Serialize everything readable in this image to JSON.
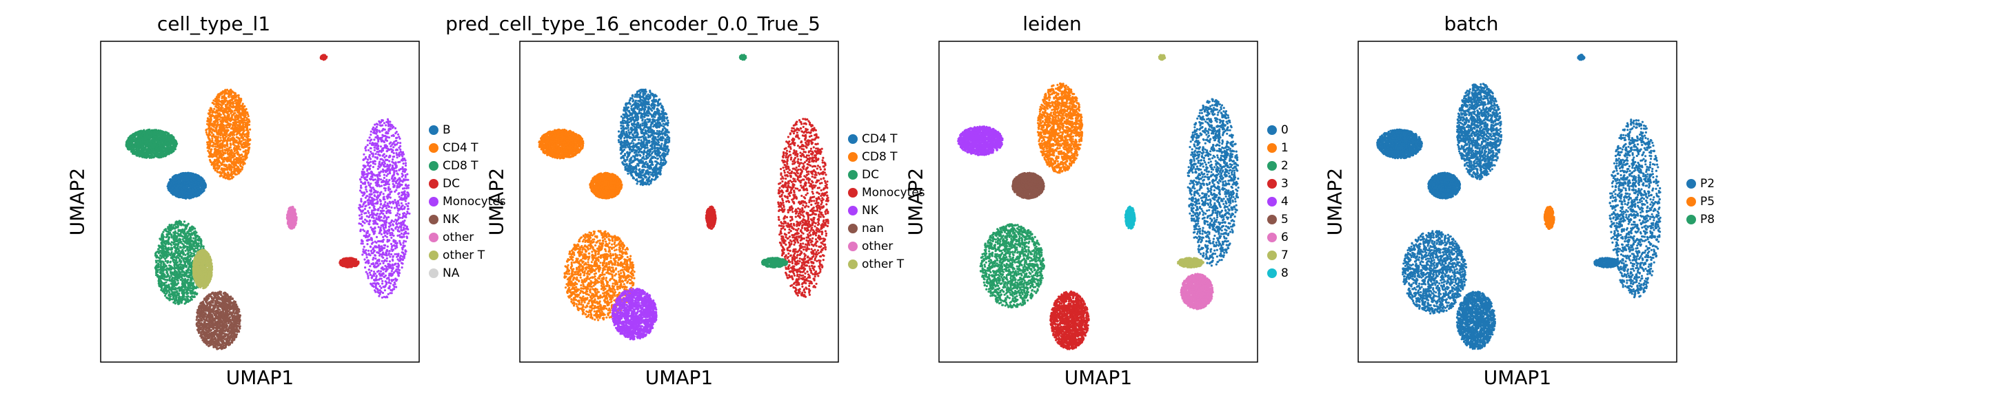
{
  "chart_data": [
    {
      "type": "scatter",
      "title": "cell_type_l1",
      "xlabel": "UMAP1",
      "ylabel": "UMAP2",
      "grid": false,
      "legend_position": "right",
      "legend": [
        {
          "label": "B",
          "color": "#1f77b4"
        },
        {
          "label": "CD4 T",
          "color": "#ff7f0e"
        },
        {
          "label": "CD8 T",
          "color": "#279e68"
        },
        {
          "label": "DC",
          "color": "#d62728"
        },
        {
          "label": "Monocytes",
          "color": "#aa40fc"
        },
        {
          "label": "NK",
          "color": "#8c564b"
        },
        {
          "label": "other",
          "color": "#e377c2"
        },
        {
          "label": "other T",
          "color": "#b5bd61"
        },
        {
          "label": "NA",
          "color": "#d3d3d3"
        }
      ],
      "clusters": [
        {
          "label": "B",
          "cx": 0.27,
          "cy": 0.55,
          "rx": 0.06,
          "ry": 0.04
        },
        {
          "label": "CD8 T",
          "cx": 0.16,
          "cy": 0.68,
          "rx": 0.08,
          "ry": 0.045
        },
        {
          "label": "CD4 T",
          "cx": 0.4,
          "cy": 0.71,
          "rx": 0.07,
          "ry": 0.14
        },
        {
          "label": "other",
          "cx": 0.6,
          "cy": 0.45,
          "rx": 0.015,
          "ry": 0.035
        },
        {
          "label": "Monocytes",
          "cx": 0.89,
          "cy": 0.48,
          "rx": 0.08,
          "ry": 0.28
        },
        {
          "label": "DC",
          "cx": 0.78,
          "cy": 0.31,
          "rx": 0.03,
          "ry": 0.015
        },
        {
          "label": "CD8 T",
          "cx": 0.25,
          "cy": 0.31,
          "rx": 0.08,
          "ry": 0.13
        },
        {
          "label": "other T",
          "cx": 0.32,
          "cy": 0.29,
          "rx": 0.03,
          "ry": 0.06
        },
        {
          "label": "NK",
          "cx": 0.37,
          "cy": 0.13,
          "rx": 0.07,
          "ry": 0.09
        },
        {
          "label": "DC",
          "cx": 0.7,
          "cy": 0.95,
          "rx": 0.01,
          "ry": 0.008
        }
      ]
    },
    {
      "type": "scatter",
      "title": "pred_cell_type_16_encoder_0.0_True_5",
      "xlabel": "UMAP1",
      "ylabel": "UMAP2",
      "grid": false,
      "legend_position": "right",
      "legend": [
        {
          "label": "CD4 T",
          "color": "#1f77b4"
        },
        {
          "label": "CD8 T",
          "color": "#ff7f0e"
        },
        {
          "label": "DC",
          "color": "#279e68"
        },
        {
          "label": "Monocytes",
          "color": "#d62728"
        },
        {
          "label": "NK",
          "color": "#aa40fc"
        },
        {
          "label": "nan",
          "color": "#8c564b"
        },
        {
          "label": "other",
          "color": "#e377c2"
        },
        {
          "label": "other T",
          "color": "#b5bd61"
        }
      ],
      "clusters": [
        {
          "label": "CD8 T",
          "cx": 0.13,
          "cy": 0.68,
          "rx": 0.07,
          "ry": 0.045
        },
        {
          "label": "CD4 T",
          "cx": 0.39,
          "cy": 0.7,
          "rx": 0.08,
          "ry": 0.15
        },
        {
          "label": "CD8 T",
          "cx": 0.27,
          "cy": 0.55,
          "rx": 0.05,
          "ry": 0.04
        },
        {
          "label": "Monocytes",
          "cx": 0.89,
          "cy": 0.48,
          "rx": 0.08,
          "ry": 0.28
        },
        {
          "label": "DC",
          "cx": 0.8,
          "cy": 0.31,
          "rx": 0.04,
          "ry": 0.015
        },
        {
          "label": "Monocytes",
          "cx": 0.6,
          "cy": 0.45,
          "rx": 0.015,
          "ry": 0.035
        },
        {
          "label": "CD8 T",
          "cx": 0.25,
          "cy": 0.27,
          "rx": 0.11,
          "ry": 0.14
        },
        {
          "label": "NK",
          "cx": 0.36,
          "cy": 0.15,
          "rx": 0.07,
          "ry": 0.08
        },
        {
          "label": "DC",
          "cx": 0.7,
          "cy": 0.95,
          "rx": 0.01,
          "ry": 0.008
        }
      ]
    },
    {
      "type": "scatter",
      "title": "leiden",
      "xlabel": "UMAP1",
      "ylabel": "UMAP2",
      "grid": false,
      "legend_position": "right",
      "legend": [
        {
          "label": "0",
          "color": "#1f77b4"
        },
        {
          "label": "1",
          "color": "#ff7f0e"
        },
        {
          "label": "2",
          "color": "#279e68"
        },
        {
          "label": "3",
          "color": "#d62728"
        },
        {
          "label": "4",
          "color": "#aa40fc"
        },
        {
          "label": "5",
          "color": "#8c564b"
        },
        {
          "label": "6",
          "color": "#e377c2"
        },
        {
          "label": "7",
          "color": "#b5bd61"
        },
        {
          "label": "8",
          "color": "#17becf"
        }
      ],
      "clusters": [
        {
          "label": "4",
          "cx": 0.13,
          "cy": 0.69,
          "rx": 0.07,
          "ry": 0.045
        },
        {
          "label": "1",
          "cx": 0.38,
          "cy": 0.73,
          "rx": 0.07,
          "ry": 0.14
        },
        {
          "label": "5",
          "cx": 0.28,
          "cy": 0.55,
          "rx": 0.05,
          "ry": 0.04
        },
        {
          "label": "8",
          "cx": 0.6,
          "cy": 0.45,
          "rx": 0.015,
          "ry": 0.035
        },
        {
          "label": "0",
          "cx": 0.86,
          "cy": 0.56,
          "rx": 0.08,
          "ry": 0.26
        },
        {
          "label": "7",
          "cx": 0.79,
          "cy": 0.31,
          "rx": 0.04,
          "ry": 0.015
        },
        {
          "label": "6",
          "cx": 0.81,
          "cy": 0.22,
          "rx": 0.05,
          "ry": 0.055
        },
        {
          "label": "2",
          "cx": 0.23,
          "cy": 0.3,
          "rx": 0.1,
          "ry": 0.13
        },
        {
          "label": "3",
          "cx": 0.41,
          "cy": 0.13,
          "rx": 0.06,
          "ry": 0.09
        },
        {
          "label": "7",
          "cx": 0.7,
          "cy": 0.95,
          "rx": 0.01,
          "ry": 0.008
        }
      ]
    },
    {
      "type": "scatter",
      "title": "batch",
      "xlabel": "UMAP1",
      "ylabel": "UMAP2",
      "grid": false,
      "legend_position": "right",
      "legend": [
        {
          "label": "P2",
          "color": "#1f77b4"
        },
        {
          "label": "P5",
          "color": "#ff7f0e"
        },
        {
          "label": "P8",
          "color": "#279e68"
        }
      ],
      "clusters": [
        {
          "label": "P2",
          "cx": 0.13,
          "cy": 0.68,
          "rx": 0.07,
          "ry": 0.045
        },
        {
          "label": "P2",
          "cx": 0.38,
          "cy": 0.72,
          "rx": 0.07,
          "ry": 0.15
        },
        {
          "label": "P2",
          "cx": 0.27,
          "cy": 0.55,
          "rx": 0.05,
          "ry": 0.04
        },
        {
          "label": "P5",
          "cx": 0.6,
          "cy": 0.45,
          "rx": 0.015,
          "ry": 0.035
        },
        {
          "label": "P2",
          "cx": 0.87,
          "cy": 0.48,
          "rx": 0.08,
          "ry": 0.28
        },
        {
          "label": "P2",
          "cx": 0.78,
          "cy": 0.31,
          "rx": 0.04,
          "ry": 0.015
        },
        {
          "label": "P2",
          "cx": 0.24,
          "cy": 0.28,
          "rx": 0.1,
          "ry": 0.13
        },
        {
          "label": "P2",
          "cx": 0.37,
          "cy": 0.13,
          "rx": 0.06,
          "ry": 0.09
        },
        {
          "label": "P2",
          "cx": 0.7,
          "cy": 0.95,
          "rx": 0.01,
          "ry": 0.008
        }
      ]
    }
  ]
}
